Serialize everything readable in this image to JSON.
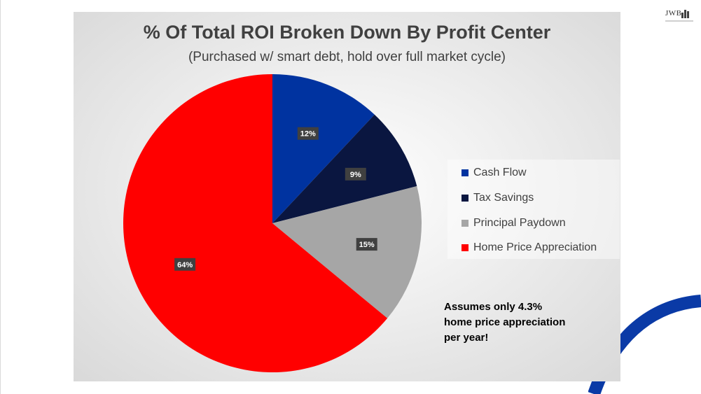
{
  "logo": {
    "text": "JWB"
  },
  "chart_data": {
    "type": "pie",
    "title": "% Of Total ROI Broken Down By Profit Center",
    "subtitle": "(Purchased w/ smart debt, hold over full market cycle)",
    "legend_position": "right",
    "categories": [
      "Cash Flow",
      "Tax Savings",
      "Principal Paydown",
      "Home Price Appreciation"
    ],
    "values": [
      12,
      9,
      15,
      64
    ],
    "labels": [
      "12%",
      "9%",
      "15%",
      "64%"
    ],
    "colors": [
      "#0033a0",
      "#0a1640",
      "#a6a6a6",
      "#ff0000"
    ],
    "annotation": [
      "Assumes only 4.3%",
      "home price appreciation",
      "per year!"
    ]
  }
}
